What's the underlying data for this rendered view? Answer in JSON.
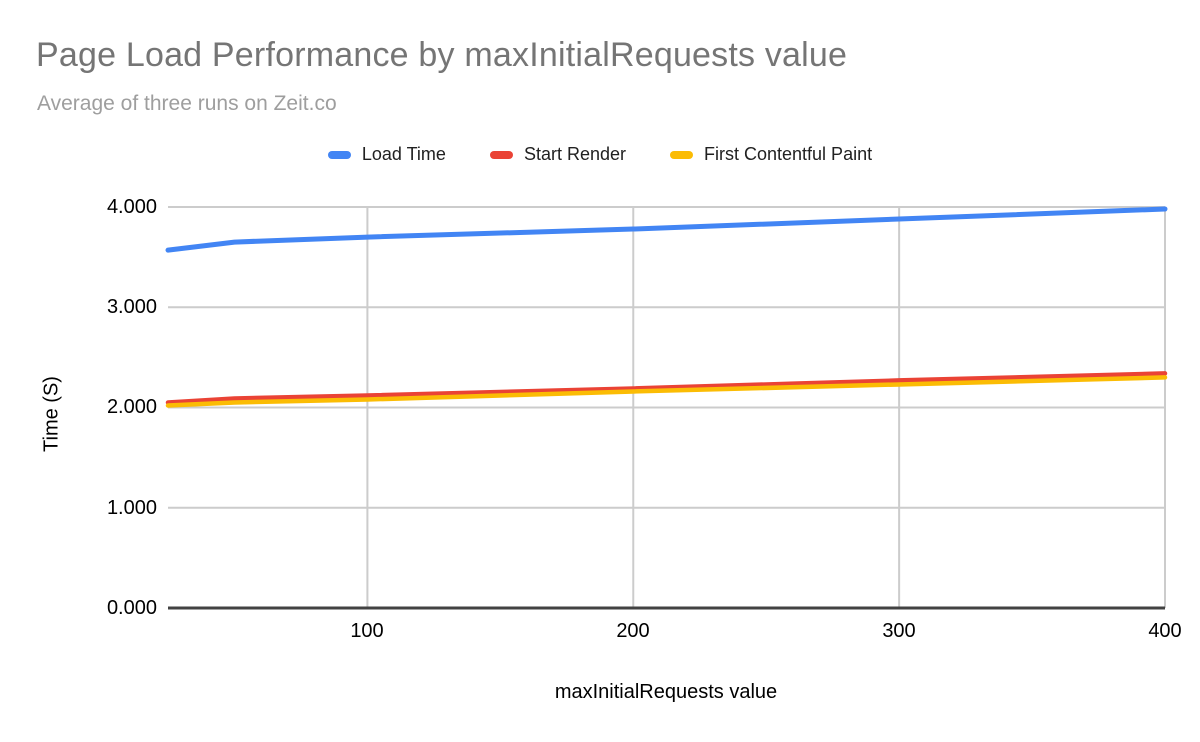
{
  "chart": {
    "title": "Page Load Performance by maxInitialRequests value",
    "subtitle": "Average of three runs on Zeit.co"
  },
  "chart_data": {
    "type": "line",
    "title": "Page Load Performance by maxInitialRequests value",
    "subtitle": "Average of three runs on Zeit.co",
    "xlabel": "maxInitialRequests value",
    "ylabel": "Time (S)",
    "x": [
      25,
      50,
      100,
      200,
      300,
      400
    ],
    "series": [
      {
        "name": "Load Time",
        "color": "#4285F4",
        "values": [
          3.57,
          3.65,
          3.7,
          3.78,
          3.88,
          3.98
        ]
      },
      {
        "name": "Start Render",
        "color": "#EA4335",
        "values": [
          2.05,
          2.09,
          2.12,
          2.19,
          2.27,
          2.34
        ]
      },
      {
        "name": "First Contentful Paint",
        "color": "#FBBC04",
        "values": [
          2.02,
          2.05,
          2.08,
          2.16,
          2.23,
          2.3
        ]
      }
    ],
    "xlim": [
      25,
      400
    ],
    "ylim": [
      0,
      4
    ],
    "x_ticks": [
      100,
      200,
      300,
      400
    ],
    "x_tick_labels": [
      "100",
      "200",
      "300",
      "400"
    ],
    "y_ticks": [
      0,
      1,
      2,
      3,
      4
    ],
    "y_tick_labels": [
      "0.000",
      "1.000",
      "2.000",
      "3.000",
      "4.000"
    ],
    "grid": true,
    "legend_position": "top",
    "colors": {
      "title": "#757575",
      "subtitle": "#9E9E9E",
      "gridline": "#CCCCCC",
      "axis_line": "#424242",
      "tick_label": "#000000"
    }
  }
}
